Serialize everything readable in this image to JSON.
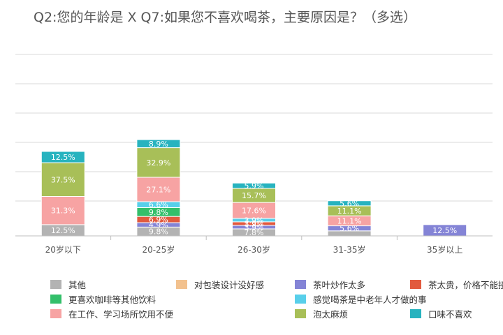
{
  "title": "Q2:您的年龄是 X Q7:如果您不喜欢喝茶，主要原因是？（多选）",
  "chart_data": {
    "type": "stacked-bar",
    "title": "Q2:您的年龄是 X Q7:如果您不喜欢喝茶，主要原因是？（多选）",
    "categories": [
      "20岁以下",
      "20-25岁",
      "26-30岁",
      "31-35岁",
      "35岁以上"
    ],
    "unit": "%",
    "grid": true,
    "legend_position": "bottom",
    "series": [
      {
        "name": "其他",
        "color": "#b3b3b3",
        "values": [
          12.5,
          9.8,
          7.8,
          5.6,
          0
        ]
      },
      {
        "name": "对包装设计没好感",
        "color": "#f2c18e",
        "values": [
          0,
          0,
          0,
          0,
          0
        ]
      },
      {
        "name": "茶叶炒作太多",
        "color": "#8484d6",
        "values": [
          0,
          4.9,
          3.9,
          5.6,
          12.5
        ]
      },
      {
        "name": "茶太贵，价格不能接受",
        "color": "#e25a3e",
        "values": [
          0,
          6.9,
          3.9,
          0,
          0
        ]
      },
      {
        "name": "更喜欢咖啡等其他饮料",
        "color": "#33bf6a",
        "values": [
          0,
          9.8,
          0,
          0,
          0
        ]
      },
      {
        "name": "感觉喝茶是中老年人才做的事",
        "color": "#58cfea",
        "values": [
          0,
          6.6,
          3.9,
          0,
          0
        ]
      },
      {
        "name": "在工作、学习场所饮用不便",
        "color": "#f7a3a3",
        "values": [
          31.3,
          27.1,
          17.6,
          11.1,
          0
        ]
      },
      {
        "name": "泡太麻烦",
        "color": "#a8bf58",
        "values": [
          37.5,
          32.9,
          15.7,
          11.1,
          0
        ]
      },
      {
        "name": "口味不喜欢",
        "color": "#27b3bf",
        "values": [
          12.5,
          8.9,
          5.9,
          5.6,
          0
        ]
      }
    ],
    "labels": [
      [
        {
          "value": "12.5%",
          "series": 0
        },
        {
          "value": "31.3%",
          "series": 6
        },
        {
          "value": "37.5%",
          "series": 7
        },
        {
          "value": "12.5%",
          "series": 8
        }
      ],
      [
        {
          "value": "9.8%",
          "series": 0
        },
        {
          "value": "4.9%",
          "series": 2
        },
        {
          "value": "6.9%",
          "series": 3
        },
        {
          "value": "9.8%",
          "series": 4
        },
        {
          "value": "6.6%",
          "series": 5
        },
        {
          "value": "27.1%",
          "series": 6
        },
        {
          "value": "32.9%",
          "series": 7
        },
        {
          "value": "8.9%",
          "series": 8
        }
      ],
      [
        {
          "value": "7.8%",
          "series": 0
        },
        {
          "value": "3.9%",
          "series": 2
        },
        {
          "value": "3.9%",
          "series": 3
        },
        {
          "value": "3.9%",
          "series": 5
        },
        {
          "value": "17.6%",
          "series": 6
        },
        {
          "value": "15.7%",
          "series": 7
        },
        {
          "value": "5.9%",
          "series": 8
        }
      ],
      [
        {
          "value": "5.6%",
          "series": 2
        },
        {
          "value": "11.1%",
          "series": 6
        },
        {
          "value": "11.1%",
          "series": 7
        },
        {
          "value": "5.6%",
          "series": 8
        }
      ],
      [
        {
          "value": "12.5%",
          "series": 2
        }
      ]
    ]
  }
}
